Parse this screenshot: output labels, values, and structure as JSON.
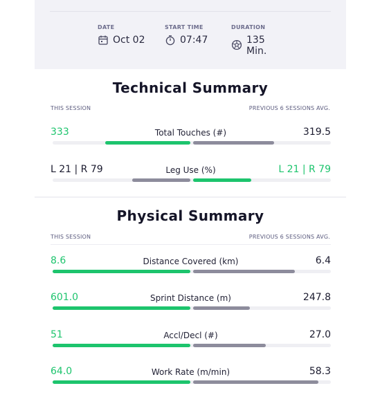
{
  "session": {
    "date_label": "DATE",
    "date_value": "Oct 02",
    "date_icon": "calendar-icon",
    "start_label": "START TIME",
    "start_value": "07:47",
    "start_icon": "stopwatch-icon",
    "duration_label": "DURATION",
    "duration_value": "135 Min.",
    "duration_icon": "ball-icon"
  },
  "technical": {
    "title": "Technical Summary",
    "left_head": "THIS SESSION",
    "right_head": "PREVIOUS 6 SESSIONS AVG.",
    "metrics": [
      {
        "label": "Total Touches (#)",
        "left": "333",
        "right": "319.5",
        "left_color": "green",
        "right_color": "dark",
        "left_fill": 0.62,
        "left_fill_color": "green",
        "right_fill": 0.59,
        "right_fill_color": "gray"
      },
      {
        "label": "Leg Use (%)",
        "left": "L 21 | R 79",
        "right": "L 21 | R 79",
        "left_color": "dark",
        "right_color": "green",
        "left_fill": 0.42,
        "left_fill_color": "gray",
        "right_fill": 0.42,
        "right_fill_color": "green"
      }
    ]
  },
  "physical": {
    "title": "Physical Summary",
    "left_head": "THIS SESSION",
    "right_head": "PREVIOUS 6 SESSIONS AVG.",
    "metrics": [
      {
        "label": "Distance Covered (km)",
        "left": "8.6",
        "right": "6.4",
        "left_color": "green",
        "right_color": "dark",
        "left_fill": 1.0,
        "left_fill_color": "green",
        "right_fill": 0.74,
        "right_fill_color": "gray"
      },
      {
        "label": "Sprint Distance (m)",
        "left": "601.0",
        "right": "247.8",
        "left_color": "green",
        "right_color": "dark",
        "left_fill": 1.0,
        "left_fill_color": "green",
        "right_fill": 0.41,
        "right_fill_color": "gray"
      },
      {
        "label": "Accl/Decl (#)",
        "left": "51",
        "right": "27.0",
        "left_color": "green",
        "right_color": "dark",
        "left_fill": 1.0,
        "left_fill_color": "green",
        "right_fill": 0.53,
        "right_fill_color": "gray"
      },
      {
        "label": "Work Rate (m/min)",
        "left": "64.0",
        "right": "58.3",
        "left_color": "green",
        "right_color": "dark",
        "left_fill": 1.0,
        "left_fill_color": "green",
        "right_fill": 0.91,
        "right_fill_color": "gray"
      }
    ]
  },
  "colors": {
    "green": "#1dc46d",
    "gray": "#8d8c9c",
    "track": "#efeff3",
    "header_bg": "#f2f2f7"
  }
}
